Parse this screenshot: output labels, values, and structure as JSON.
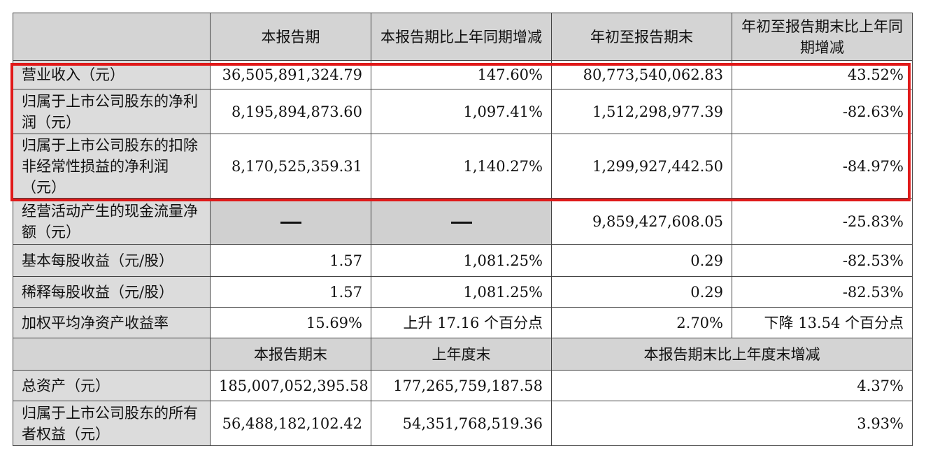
{
  "header1": {
    "corner": "",
    "col1": "本报告期",
    "col2": "本报告期比上年同期增减",
    "col3": "年初至报告期末",
    "col4": "年初至报告期末比上年同期增减"
  },
  "rows": [
    {
      "label": "营业收入（元）",
      "v1": "36,505,891,324.79",
      "v2": "147.60%",
      "v3": "80,773,540,062.83",
      "v4": "43.52%"
    },
    {
      "label": "归属于上市公司股东的净利润（元）",
      "v1": "8,195,894,873.60",
      "v2": "1,097.41%",
      "v3": "1,512,298,977.39",
      "v4": "-82.63%"
    },
    {
      "label": "归属于上市公司股东的扣除非经常性损益的净利润（元）",
      "v1": "8,170,525,359.31",
      "v2": "1,140.27%",
      "v3": "1,299,927,442.50",
      "v4": "-84.97%"
    },
    {
      "label": "经营活动产生的现金流量净额（元）",
      "v1": "—",
      "v2": "—",
      "v3": "9,859,427,608.05",
      "v4": "-25.83%"
    },
    {
      "label": "基本每股收益（元/股）",
      "v1": "1.57",
      "v2": "1,081.25%",
      "v3": "0.29",
      "v4": "-82.53%"
    },
    {
      "label": "稀释每股收益（元/股）",
      "v1": "1.57",
      "v2": "1,081.25%",
      "v3": "0.29",
      "v4": "-82.53%"
    },
    {
      "label": "加权平均净资产收益率",
      "v1": "15.69%",
      "v2": "上升 17.16 个百分点",
      "v3": "2.70%",
      "v4": "下降 13.54 个百分点"
    }
  ],
  "header2": {
    "corner": "",
    "col1": "本报告期末",
    "col2": "上年度末",
    "col3": "本报告期末比上年度末增减"
  },
  "rows2": [
    {
      "label": "总资产（元）",
      "v1": "185,007,052,395.58",
      "v2": "177,265,759,187.58",
      "v3": "4.37%"
    },
    {
      "label": "归属于上市公司股东的所有者权益（元）",
      "v1": "56,488,182,102.42",
      "v2": "54,351,768,519.36",
      "v3": "3.93%"
    }
  ],
  "colors": {
    "highlight": "#e01919",
    "header_bg": "#d4d4d4",
    "label_bg": "#dcdcdc"
  }
}
